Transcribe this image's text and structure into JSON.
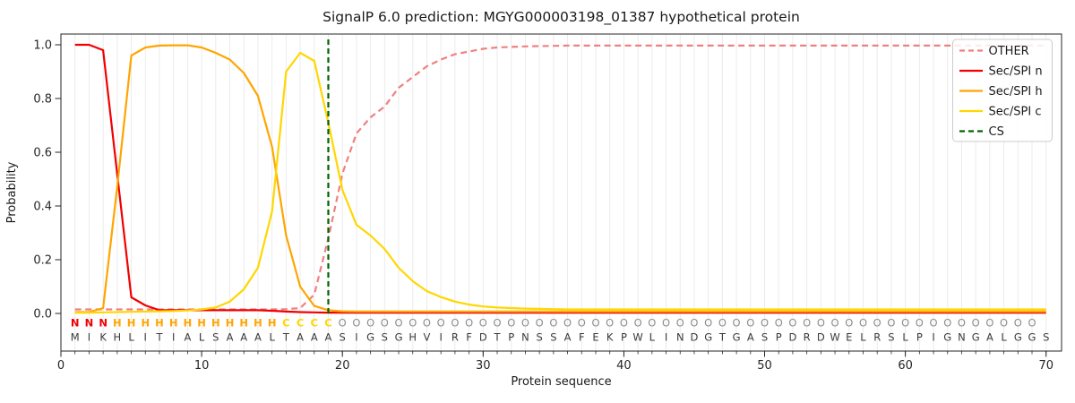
{
  "figure": {
    "title": "SignalP 6.0 prediction: MGYG000003198_01387 hypothetical protein",
    "xlabel": "Protein sequence",
    "ylabel": "Probability"
  },
  "chart_data": {
    "type": "line",
    "title": "SignalP 6.0 prediction: MGYG000003198_01387 hypothetical protein",
    "xlabel": "Protein sequence",
    "ylabel": "Probability",
    "xlim": [
      0,
      71.1
    ],
    "ylim": [
      -0.14,
      1.04
    ],
    "x_ticks": [
      0,
      10,
      20,
      30,
      40,
      50,
      60,
      70
    ],
    "y_ticks": [
      0.0,
      0.2,
      0.4,
      0.6,
      0.8,
      1.0
    ],
    "grid": {
      "vertical_minor": true,
      "color": "#e9e9e9"
    },
    "legend_position": "upper right",
    "legend_labels": [
      "OTHER",
      "Sec/SPI n",
      "Sec/SPI h",
      "Sec/SPI c",
      "CS"
    ],
    "x": [
      1,
      2,
      3,
      4,
      5,
      6,
      7,
      8,
      9,
      10,
      11,
      12,
      13,
      14,
      15,
      16,
      17,
      18,
      19,
      20,
      21,
      22,
      23,
      24,
      25,
      26,
      27,
      28,
      29,
      30,
      31,
      32,
      33,
      34,
      35,
      36,
      37,
      38,
      39,
      40,
      41,
      42,
      43,
      44,
      45,
      46,
      47,
      48,
      49,
      50,
      51,
      52,
      53,
      54,
      55,
      56,
      57,
      58,
      59,
      60,
      61,
      62,
      63,
      64,
      65,
      66,
      67,
      68,
      69,
      70
    ],
    "series": [
      {
        "name": "OTHER",
        "color": "#f08080",
        "style": "dashed",
        "values": [
          0.015,
          0.015,
          0.015,
          0.015,
          0.015,
          0.015,
          0.015,
          0.015,
          0.015,
          0.015,
          0.015,
          0.015,
          0.015,
          0.015,
          0.015,
          0.016,
          0.02,
          0.07,
          0.28,
          0.52,
          0.67,
          0.73,
          0.77,
          0.84,
          0.88,
          0.92,
          0.945,
          0.965,
          0.975,
          0.985,
          0.99,
          0.992,
          0.994,
          0.995,
          0.996,
          0.997,
          0.997,
          0.997,
          0.997,
          0.997,
          0.997,
          0.997,
          0.997,
          0.997,
          0.997,
          0.997,
          0.997,
          0.997,
          0.997,
          0.997,
          0.997,
          0.997,
          0.997,
          0.997,
          0.997,
          0.997,
          0.997,
          0.997,
          0.997,
          0.997,
          0.997,
          0.997,
          0.997,
          0.997,
          0.997,
          0.997,
          0.997,
          0.997,
          0.997,
          0.997
        ]
      },
      {
        "name": "Sec/SPI n",
        "color": "#f20000",
        "style": "solid",
        "values": [
          1.0,
          1.0,
          0.98,
          0.52,
          0.06,
          0.03,
          0.012,
          0.012,
          0.012,
          0.012,
          0.012,
          0.012,
          0.012,
          0.012,
          0.01,
          0.007,
          0.005,
          0.004,
          0.003,
          0.003,
          0.003,
          0.003,
          0.003,
          0.003,
          0.003,
          0.003,
          0.003,
          0.003,
          0.003,
          0.003,
          0.003,
          0.003,
          0.003,
          0.003,
          0.003,
          0.003,
          0.003,
          0.003,
          0.003,
          0.003,
          0.003,
          0.003,
          0.003,
          0.003,
          0.003,
          0.003,
          0.003,
          0.003,
          0.003,
          0.003,
          0.003,
          0.003,
          0.003,
          0.003,
          0.003,
          0.003,
          0.003,
          0.003,
          0.003,
          0.003,
          0.003,
          0.003,
          0.003,
          0.003,
          0.003,
          0.003,
          0.003,
          0.003,
          0.003,
          0.003
        ]
      },
      {
        "name": "Sec/SPI h",
        "color": "#ffa500",
        "style": "solid",
        "values": [
          0.005,
          0.005,
          0.02,
          0.47,
          0.96,
          0.99,
          0.997,
          0.998,
          0.998,
          0.99,
          0.97,
          0.945,
          0.895,
          0.81,
          0.62,
          0.29,
          0.1,
          0.028,
          0.012,
          0.008,
          0.007,
          0.007,
          0.007,
          0.007,
          0.007,
          0.007,
          0.007,
          0.007,
          0.007,
          0.007,
          0.007,
          0.007,
          0.007,
          0.007,
          0.007,
          0.007,
          0.007,
          0.007,
          0.007,
          0.007,
          0.007,
          0.007,
          0.007,
          0.007,
          0.007,
          0.007,
          0.007,
          0.007,
          0.007,
          0.007,
          0.007,
          0.007,
          0.007,
          0.007,
          0.007,
          0.007,
          0.007,
          0.007,
          0.007,
          0.007,
          0.007,
          0.007,
          0.007,
          0.007,
          0.007,
          0.007,
          0.007,
          0.007,
          0.007,
          0.007
        ]
      },
      {
        "name": "Sec/SPI c",
        "color": "#ffd700",
        "style": "solid",
        "values": [
          0.003,
          0.003,
          0.004,
          0.005,
          0.006,
          0.007,
          0.008,
          0.009,
          0.011,
          0.015,
          0.022,
          0.044,
          0.09,
          0.17,
          0.38,
          0.9,
          0.97,
          0.94,
          0.71,
          0.46,
          0.33,
          0.29,
          0.24,
          0.17,
          0.12,
          0.083,
          0.061,
          0.044,
          0.033,
          0.026,
          0.022,
          0.02,
          0.018,
          0.017,
          0.016,
          0.015,
          0.015,
          0.015,
          0.015,
          0.015,
          0.015,
          0.015,
          0.015,
          0.015,
          0.015,
          0.015,
          0.015,
          0.015,
          0.015,
          0.015,
          0.015,
          0.015,
          0.015,
          0.015,
          0.015,
          0.015,
          0.015,
          0.015,
          0.015,
          0.015,
          0.015,
          0.015,
          0.015,
          0.015,
          0.015,
          0.015,
          0.015,
          0.015,
          0.015,
          0.015
        ]
      }
    ],
    "cs_marker": {
      "name": "CS",
      "position": 19,
      "color": "#006400",
      "style": "dashed"
    },
    "sequence": "MIKHLITIALSAAALTAAASIGSGHVIRFDTPNSSAFEKPWLINDGTGASPDRDWELRSLPIGNGALGGS",
    "region_annotation": "NNNHHHHHHHHHHHHCCCCOOOOOOOOOOOOOOOOOOOOOOOOOOOOOOOOOOOOOOOOOOOOOOOOOO",
    "annotation_colors": {
      "N": "#f20000",
      "H": "#ffa500",
      "C": "#ffd700",
      "O": "#8c8c8c"
    },
    "sequence_color": "#3a3a3a"
  }
}
